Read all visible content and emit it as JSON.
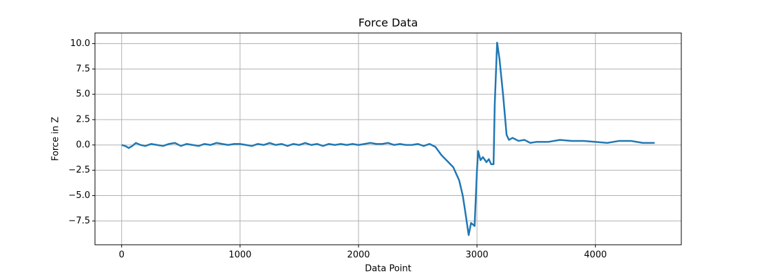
{
  "chart_data": {
    "type": "line",
    "title": "Force Data",
    "x_label": "Data Point",
    "y_label": "Force in Z",
    "x": [
      0,
      30,
      60,
      90,
      120,
      160,
      200,
      250,
      300,
      350,
      400,
      450,
      500,
      550,
      600,
      650,
      700,
      750,
      800,
      850,
      900,
      950,
      1000,
      1050,
      1100,
      1150,
      1200,
      1250,
      1300,
      1350,
      1400,
      1450,
      1500,
      1550,
      1600,
      1650,
      1700,
      1750,
      1800,
      1850,
      1900,
      1950,
      2000,
      2050,
      2100,
      2150,
      2200,
      2250,
      2300,
      2350,
      2400,
      2450,
      2500,
      2550,
      2600,
      2650,
      2700,
      2750,
      2800,
      2850,
      2880,
      2900,
      2930,
      2950,
      2980,
      3000,
      3010,
      3030,
      3050,
      3080,
      3100,
      3120,
      3140,
      3150,
      3170,
      3190,
      3220,
      3250,
      3270,
      3300,
      3350,
      3400,
      3450,
      3500,
      3600,
      3700,
      3800,
      3900,
      4000,
      4100,
      4200,
      4300,
      4400,
      4500
    ],
    "series": [
      {
        "name": "Force in Z",
        "color": "#1f77b4",
        "values": [
          0,
          -0.1,
          -0.3,
          -0.1,
          0.2,
          0.0,
          -0.1,
          0.1,
          0.0,
          -0.1,
          0.1,
          0.2,
          -0.1,
          0.1,
          0.0,
          -0.1,
          0.1,
          0.0,
          0.2,
          0.1,
          0.0,
          0.1,
          0.1,
          0.0,
          -0.1,
          0.1,
          0.0,
          0.2,
          0.0,
          0.1,
          -0.1,
          0.1,
          0.0,
          0.2,
          0.0,
          0.1,
          -0.1,
          0.1,
          0.0,
          0.1,
          0.0,
          0.1,
          0.0,
          0.1,
          0.2,
          0.1,
          0.1,
          0.2,
          0.0,
          0.1,
          0.0,
          0.0,
          0.1,
          -0.1,
          0.1,
          -0.2,
          -1.0,
          -1.6,
          -2.2,
          -3.5,
          -5.0,
          -6.5,
          -8.9,
          -7.7,
          -8.0,
          -2.5,
          -0.6,
          -1.5,
          -1.2,
          -1.7,
          -1.4,
          -1.9,
          -1.9,
          4.0,
          10.1,
          8.5,
          5.0,
          1.0,
          0.5,
          0.7,
          0.4,
          0.5,
          0.2,
          0.3,
          0.3,
          0.5,
          0.4,
          0.4,
          0.3,
          0.2,
          0.4,
          0.4,
          0.2,
          0.2
        ]
      }
    ],
    "xlim": [
      -225,
      4725
    ],
    "ylim": [
      -9.85,
      11.05
    ],
    "xticks": [
      0,
      1000,
      2000,
      3000,
      4000
    ],
    "yticks": [
      {
        "value": -7.5,
        "label": "−7.5"
      },
      {
        "value": -5,
        "label": "−5.0"
      },
      {
        "value": -2.5,
        "label": "−2.5"
      },
      {
        "value": 0,
        "label": "0.0"
      },
      2.5,
      {
        "value": 5,
        "label": "5.0"
      },
      7.5,
      {
        "value": 10,
        "label": "10.0"
      }
    ],
    "grid": true
  }
}
